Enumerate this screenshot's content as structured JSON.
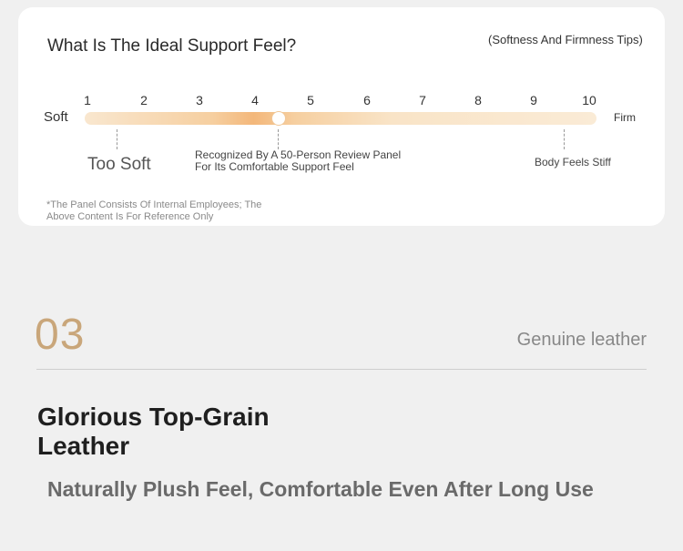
{
  "card": {
    "title": "What Is The Ideal Support Feel?",
    "tips": "(Softness And Firmness Tips)",
    "scale": [
      "1",
      "2",
      "3",
      "4",
      "5",
      "6",
      "7",
      "8",
      "9",
      "10"
    ],
    "left_label": "Soft",
    "right_label": "Firm",
    "selected_value": 4.4,
    "too_soft": "Too Soft",
    "recognized": "Recognized By A 50-Person Review Panel For Its Comfortable Support Feel",
    "stiff": "Body Feels Stiff",
    "footnote": "*The Panel Consists Of Internal Employees; The Above Content Is For Reference Only"
  },
  "section": {
    "number": "03",
    "tag": "Genuine leather",
    "headline": "Glorious Top-Grain Leather",
    "subline": "Naturally Plush Feel, Comfortable Even After Long Use"
  },
  "colors": {
    "accent": "#c9a67a",
    "track_peak": "#f3b77a"
  }
}
